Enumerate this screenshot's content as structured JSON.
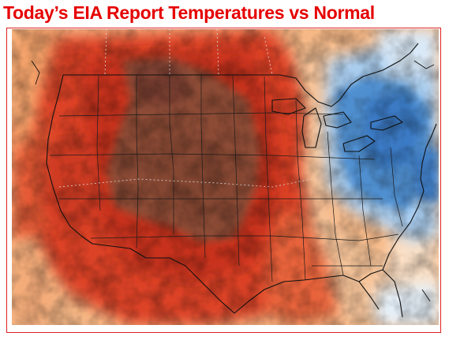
{
  "header": {
    "title": "Today’s EIA Report Temperatures vs Normal"
  },
  "colors": {
    "title": "#e60000",
    "frame_border": "#e02020",
    "much_above_normal": "#8a4a35",
    "above_normal_strong": "#c8321c",
    "above_normal": "#e0472a",
    "slightly_above_normal": "#f2a06a",
    "near_normal": "#fbe2c4",
    "slightly_below_normal": "#cfe2f3",
    "below_normal": "#6aa8de",
    "much_below_normal": "#2f78c2"
  },
  "map": {
    "region": "United States",
    "variable": "temperature-anomaly"
  }
}
